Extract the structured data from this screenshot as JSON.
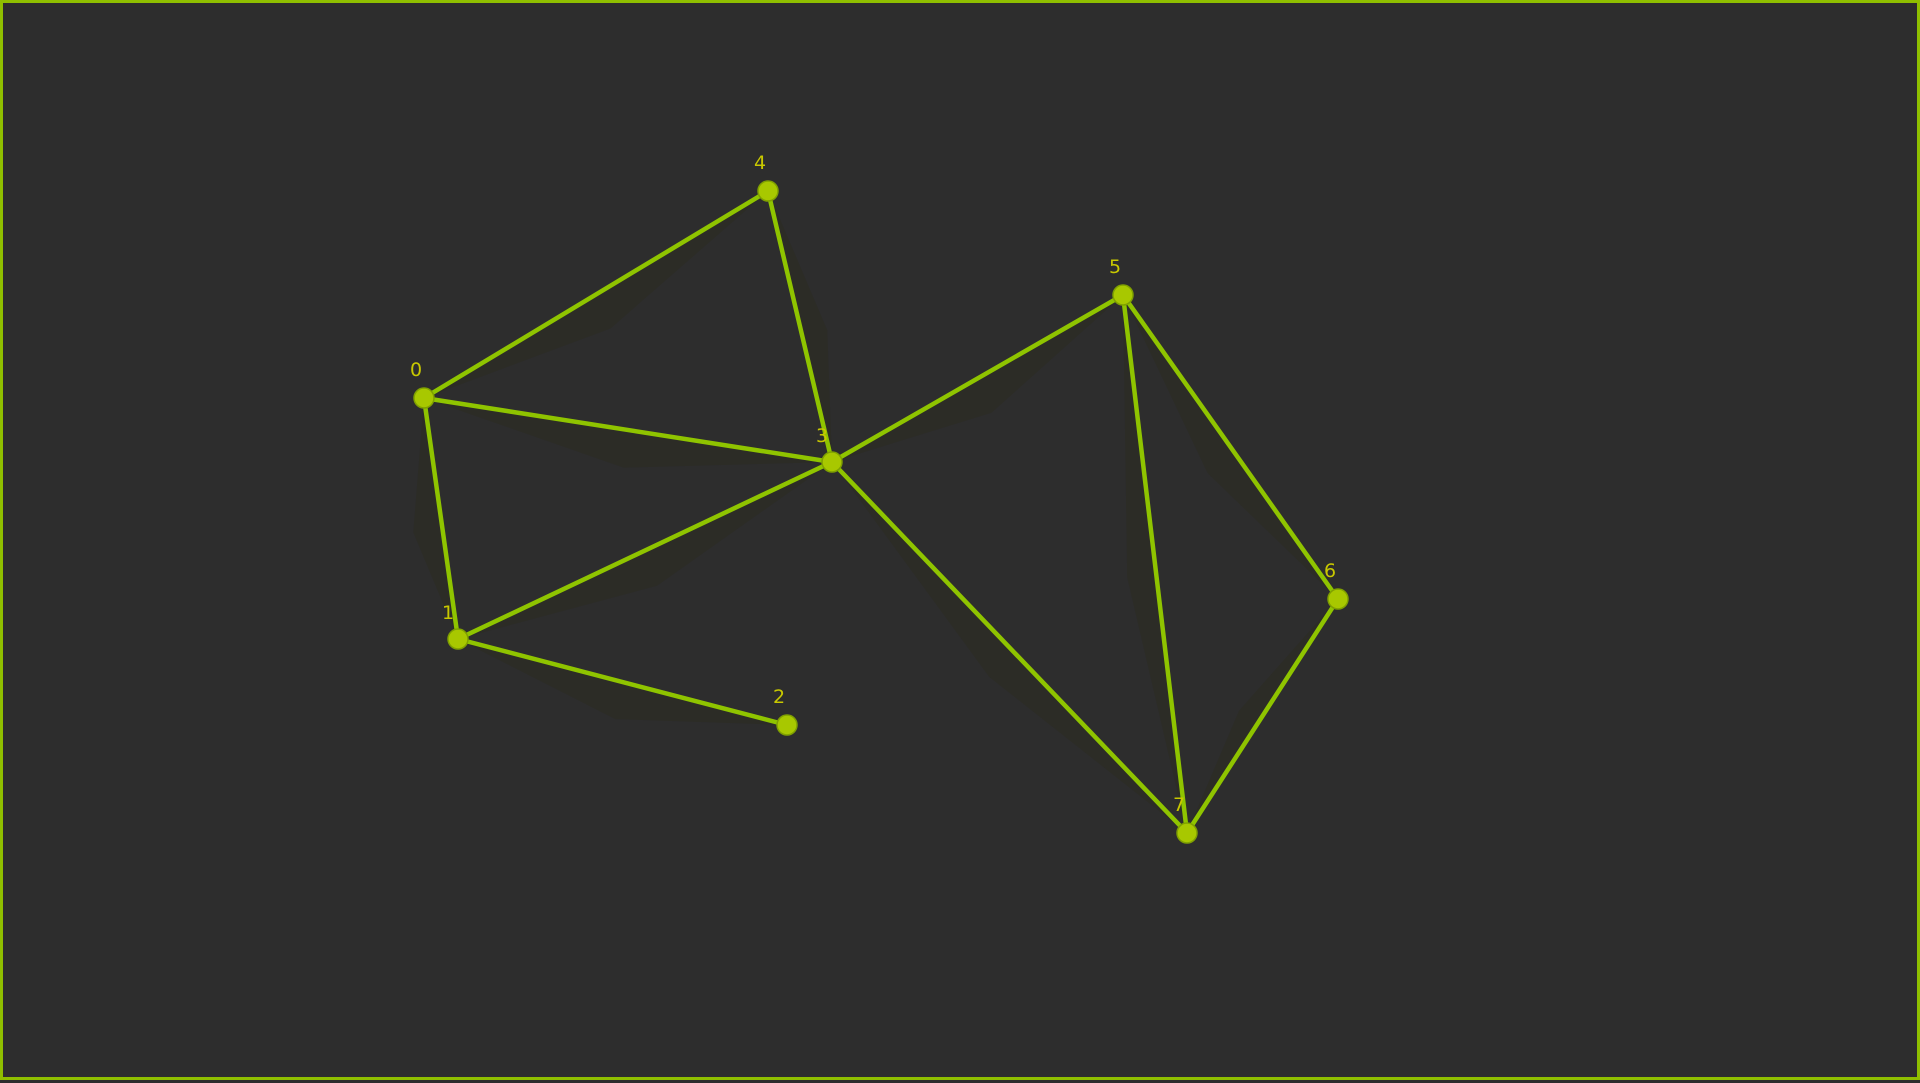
{
  "graph": {
    "colors": {
      "background": "#2d2d2d",
      "edge": "#8fc400",
      "node": "#a8c800",
      "label": "#c8c800",
      "shadow": "#2b2b22",
      "border": "#8fbf00"
    },
    "nodes": [
      {
        "id": "0",
        "label": "0"
      },
      {
        "id": "1",
        "label": "1"
      },
      {
        "id": "2",
        "label": "2"
      },
      {
        "id": "3",
        "label": "3"
      },
      {
        "id": "4",
        "label": "4"
      },
      {
        "id": "5",
        "label": "5"
      },
      {
        "id": "6",
        "label": "6"
      },
      {
        "id": "7",
        "label": "7"
      }
    ],
    "edges": [
      {
        "from": "0",
        "to": "4"
      },
      {
        "from": "0",
        "to": "3"
      },
      {
        "from": "0",
        "to": "1"
      },
      {
        "from": "1",
        "to": "3"
      },
      {
        "from": "1",
        "to": "2"
      },
      {
        "from": "3",
        "to": "4"
      },
      {
        "from": "3",
        "to": "5"
      },
      {
        "from": "3",
        "to": "7"
      },
      {
        "from": "5",
        "to": "6"
      },
      {
        "from": "5",
        "to": "7"
      },
      {
        "from": "6",
        "to": "7"
      }
    ]
  }
}
